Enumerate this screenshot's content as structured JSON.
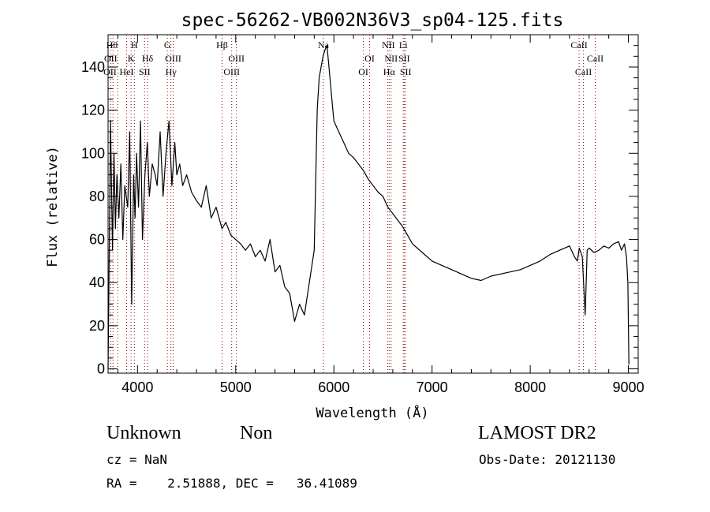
{
  "chart_data": {
    "type": "line",
    "title": "spec-56262-VB002N36V3_sp04-125.fits",
    "xlabel": "Wavelength (Å)",
    "ylabel": "Flux (relative)",
    "xlim": [
      3700,
      9100
    ],
    "ylim": [
      -2,
      155
    ],
    "x_ticks": [
      4000,
      5000,
      6000,
      7000,
      8000,
      9000
    ],
    "y_ticks": [
      0,
      20,
      40,
      60,
      80,
      100,
      120,
      140
    ],
    "grid": false,
    "line_color": "#000000",
    "marker_color": "#8b0000",
    "series": [
      {
        "x": [
          3700,
          3725,
          3745,
          3760,
          3775,
          3790,
          3810,
          3830,
          3850,
          3870,
          3900,
          3920,
          3940,
          3960,
          3975,
          3990,
          4010,
          4030,
          4050,
          4075,
          4100,
          4120,
          4150,
          4180,
          4200,
          4230,
          4260,
          4290,
          4320,
          4350,
          4380,
          4400,
          4430,
          4460,
          4500,
          4550,
          4600,
          4650,
          4700,
          4750,
          4800,
          4860,
          4900,
          4950,
          5000,
          5050,
          5100,
          5150,
          5200,
          5250,
          5300,
          5350,
          5400,
          5450,
          5500,
          5550,
          5600,
          5650,
          5700,
          5750,
          5800,
          5830,
          5850,
          5870,
          5890,
          5910,
          5930,
          5950,
          5980,
          6000,
          6050,
          6100,
          6150,
          6200,
          6250,
          6300,
          6350,
          6400,
          6450,
          6500,
          6550,
          6600,
          6650,
          6700,
          6750,
          6800,
          6900,
          7000,
          7100,
          7200,
          7300,
          7400,
          7500,
          7600,
          7700,
          7800,
          7900,
          8000,
          8100,
          8200,
          8300,
          8400,
          8450,
          8480,
          8500,
          8530,
          8560,
          8580,
          8600,
          8650,
          8700,
          8750,
          8800,
          8850,
          8900,
          8930,
          8960,
          8980,
          8995,
          9005
        ],
        "y": [
          0,
          115,
          55,
          100,
          65,
          90,
          70,
          95,
          60,
          85,
          75,
          110,
          30,
          90,
          70,
          100,
          75,
          115,
          60,
          90,
          105,
          80,
          95,
          90,
          85,
          110,
          80,
          100,
          115,
          85,
          105,
          90,
          95,
          85,
          90,
          82,
          78,
          75,
          85,
          70,
          75,
          65,
          68,
          62,
          60,
          58,
          55,
          58,
          52,
          55,
          50,
          60,
          45,
          48,
          38,
          35,
          22,
          30,
          25,
          40,
          55,
          120,
          135,
          140,
          145,
          148,
          150,
          140,
          125,
          115,
          110,
          105,
          100,
          98,
          95,
          92,
          88,
          85,
          82,
          80,
          75,
          72,
          69,
          66,
          62,
          58,
          54,
          50,
          48,
          46,
          44,
          42,
          41,
          43,
          44,
          45,
          46,
          48,
          50,
          53,
          55,
          57,
          52,
          50,
          56,
          52,
          25,
          55,
          56,
          54,
          55,
          57,
          56,
          58,
          59,
          55,
          58,
          52,
          40,
          2
        ]
      }
    ],
    "line_markers": [
      {
        "x": 3727,
        "labels": [
          "OII"
        ]
      },
      {
        "x": 3750,
        "labels": [
          "Hθ"
        ]
      },
      {
        "x": 3798,
        "labels": [
          "Hη"
        ]
      },
      {
        "x": 3889,
        "labels": [
          "HeI"
        ]
      },
      {
        "x": 3934,
        "labels": [
          "K"
        ]
      },
      {
        "x": 3968,
        "labels": [
          "H"
        ]
      },
      {
        "x": 4072,
        "labels": [
          "SII"
        ]
      },
      {
        "x": 4102,
        "labels": [
          "Hδ"
        ]
      },
      {
        "x": 4304,
        "labels": [
          "G"
        ]
      },
      {
        "x": 4340,
        "labels": [
          "Hγ"
        ]
      },
      {
        "x": 4363,
        "labels": [
          "OIII"
        ]
      },
      {
        "x": 4861,
        "labels": [
          "Hβ"
        ]
      },
      {
        "x": 4959,
        "labels": [
          "OIII"
        ]
      },
      {
        "x": 5007,
        "labels": [
          "OIII"
        ]
      },
      {
        "x": 5893,
        "labels": [
          "Na"
        ]
      },
      {
        "x": 6300,
        "labels": [
          "OI"
        ]
      },
      {
        "x": 6364,
        "labels": [
          "OI"
        ]
      },
      {
        "x": 6548,
        "labels": [
          "NII"
        ]
      },
      {
        "x": 6563,
        "labels": [
          "Hα"
        ]
      },
      {
        "x": 6583,
        "labels": [
          "NII"
        ]
      },
      {
        "x": 6707,
        "labels": [
          "Li"
        ]
      },
      {
        "x": 6716,
        "labels": [
          "SII"
        ]
      },
      {
        "x": 6731,
        "labels": [
          "SII"
        ]
      },
      {
        "x": 8498,
        "labels": [
          "CaII"
        ]
      },
      {
        "x": 8542,
        "labels": [
          "CaII"
        ]
      },
      {
        "x": 8662,
        "labels": [
          "CaII"
        ]
      }
    ],
    "marker_label_rows": [
      {
        "row": 0,
        "items": [
          {
            "x": 3740,
            "text": "Hθ"
          },
          {
            "x": 3968,
            "text": "H"
          },
          {
            "x": 4304,
            "text": "G"
          },
          {
            "x": 4861,
            "text": "Hβ"
          },
          {
            "x": 5893,
            "text": "Na"
          },
          {
            "x": 6555,
            "text": "NII"
          },
          {
            "x": 6707,
            "text": "Li"
          },
          {
            "x": 8498,
            "text": "CaII"
          }
        ]
      },
      {
        "row": 1,
        "items": [
          {
            "x": 3727,
            "text": "OII"
          },
          {
            "x": 3934,
            "text": "K"
          },
          {
            "x": 4102,
            "text": "Hδ"
          },
          {
            "x": 4363,
            "text": "OIII"
          },
          {
            "x": 5007,
            "text": "OIII"
          },
          {
            "x": 6364,
            "text": "OI"
          },
          {
            "x": 6583,
            "text": "NII"
          },
          {
            "x": 6716,
            "text": "SII"
          },
          {
            "x": 8662,
            "text": "CaII"
          }
        ]
      },
      {
        "row": 2,
        "items": [
          {
            "x": 3720,
            "text": "OII"
          },
          {
            "x": 3889,
            "text": "HeI"
          },
          {
            "x": 4072,
            "text": "SII"
          },
          {
            "x": 4340,
            "text": "Hγ"
          },
          {
            "x": 4959,
            "text": "OIII"
          },
          {
            "x": 6300,
            "text": "OI"
          },
          {
            "x": 6563,
            "text": "Hα"
          },
          {
            "x": 6731,
            "text": "SII"
          },
          {
            "x": 8542,
            "text": "CaII"
          }
        ]
      }
    ]
  },
  "info": {
    "class_label": "Unknown",
    "subclass_label": "Non",
    "survey": "LAMOST DR2",
    "cz": "cz = NaN",
    "obs_date": "Obs-Date: 20121130",
    "coords": "RA =    2.51888, DEC =   36.41089"
  }
}
